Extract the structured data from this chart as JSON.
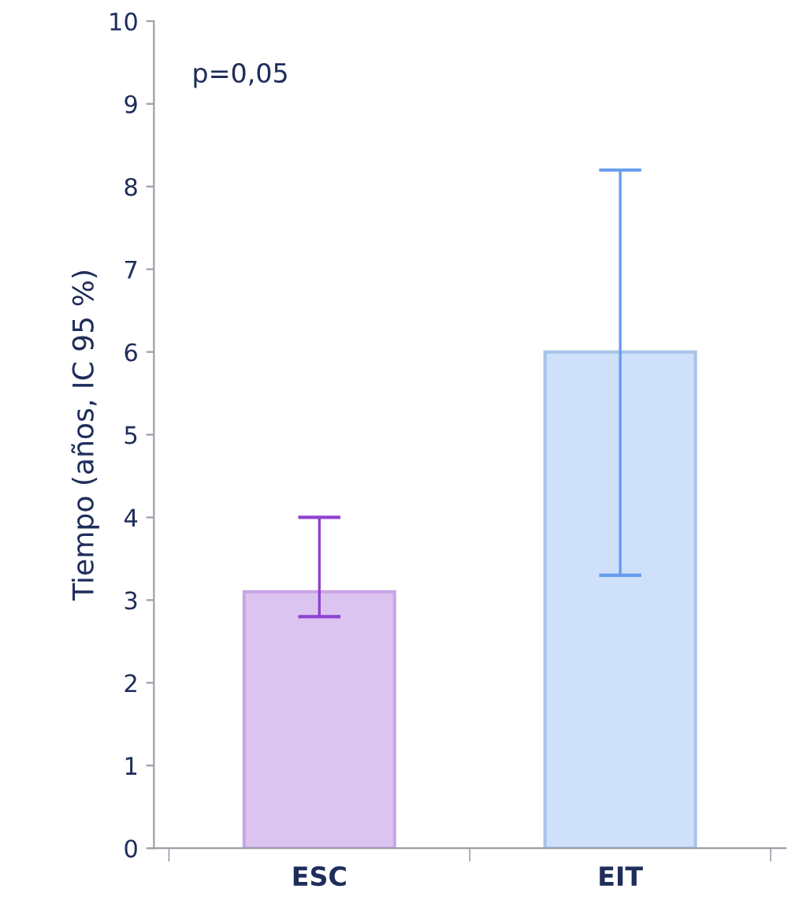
{
  "chart_data": {
    "type": "bar",
    "ylabel": "Tiempo (años, IC 95 %)",
    "categories": [
      "ESC",
      "EIT"
    ],
    "values": [
      3.1,
      6.0
    ],
    "colors": [
      "#dcc4f0",
      "#cfe0fa"
    ],
    "errors": [
      [
        2.8,
        4.0
      ],
      [
        3.3,
        8.2
      ]
    ],
    "ylim": [
      0,
      10
    ],
    "yticks": [
      0,
      1,
      2,
      3,
      4,
      5,
      6,
      7,
      8,
      9,
      10
    ],
    "grid": false,
    "legend": false,
    "annotations": [
      "p=0,05"
    ]
  }
}
